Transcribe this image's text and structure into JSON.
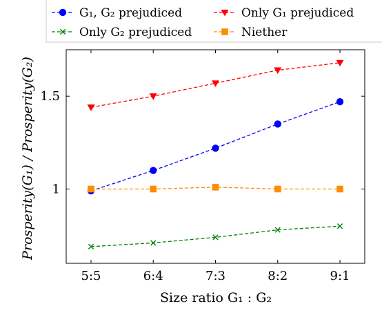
{
  "chart_data": {
    "type": "line",
    "categories": [
      "5:5",
      "6:4",
      "7:3",
      "8:2",
      "9:1"
    ],
    "xlabel": "Size ratio G₁ : G₂",
    "ylabel": "Prosperity(G₁) / Prosperity(G₂)",
    "ylim": [
      0.6,
      1.75
    ],
    "yticks": [
      {
        "value": 1,
        "label": "1"
      },
      {
        "value": 1.5,
        "label": "1.5"
      }
    ],
    "grid": false,
    "legend_position": "top",
    "series": [
      {
        "name": "G₁, G₂ prejudiced",
        "color": "#0000ff",
        "marker": "circle",
        "values": [
          0.99,
          1.1,
          1.22,
          1.35,
          1.47
        ]
      },
      {
        "name": "Only G₁ prejudiced",
        "color": "#ff0000",
        "marker": "triangle-down",
        "values": [
          1.44,
          1.5,
          1.57,
          1.64,
          1.68
        ]
      },
      {
        "name": "Only G₂ prejudiced",
        "color": "#008000",
        "marker": "x",
        "values": [
          0.69,
          0.71,
          0.74,
          0.78,
          0.8
        ]
      },
      {
        "name": "Niether",
        "color": "#ff8c00",
        "marker": "square",
        "values": [
          1.0,
          1.0,
          1.01,
          1.0,
          1.0
        ]
      }
    ]
  }
}
